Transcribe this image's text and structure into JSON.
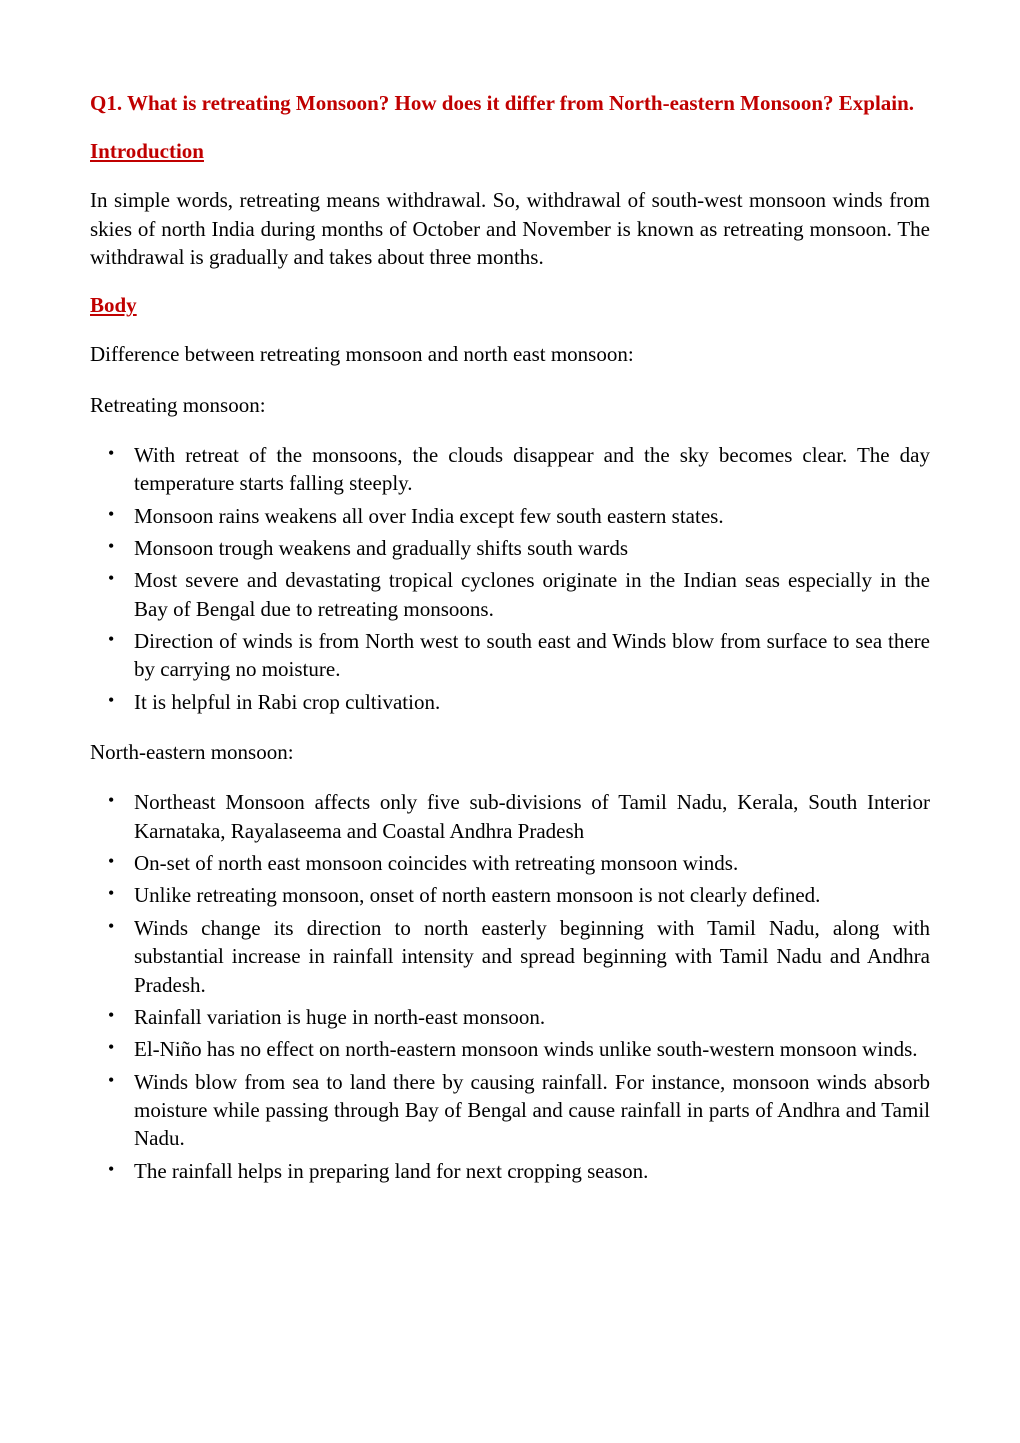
{
  "colors": {
    "heading": "#c00000",
    "body_text": "#000000",
    "background": "#ffffff"
  },
  "typography": {
    "font_family": "Times New Roman",
    "heading_size_pt": 16,
    "body_size_pt": 16,
    "heading_weight": "bold"
  },
  "question": {
    "label": "Q1. What is retreating Monsoon? How does it differ from North-eastern Monsoon? Explain."
  },
  "intro": {
    "heading": "Introduction",
    "text": "In simple words, retreating means withdrawal. So, withdrawal of south-west monsoon winds from skies of north India during months of October and November is known as retreating monsoon. The withdrawal is gradually and takes about three months."
  },
  "body": {
    "heading": "Body",
    "lead": "Difference between retreating monsoon and north east monsoon:",
    "retreating": {
      "title": "Retreating monsoon:",
      "items": [
        "With retreat of the monsoons, the clouds disappear and the sky becomes clear. The day temperature starts falling steeply.",
        "Monsoon rains weakens all over India except few south eastern states.",
        "Monsoon trough weakens and gradually shifts south wards",
        "Most severe and devastating tropical cyclones originate in the Indian seas especially in the Bay of Bengal due to retreating monsoons.",
        "Direction of winds is from North west to south east and Winds blow from surface to sea there by carrying no moisture.",
        "It is helpful in Rabi crop cultivation."
      ]
    },
    "northeastern": {
      "title": "North-eastern monsoon:",
      "items": [
        "Northeast Monsoon affects only five sub-divisions of Tamil Nadu, Kerala, South Interior Karnataka, Rayalaseema and Coastal Andhra Pradesh",
        "On-set of north east monsoon coincides with retreating monsoon winds.",
        "Unlike retreating monsoon, onset of north eastern monsoon is not clearly defined.",
        "Winds change its direction to north easterly beginning with Tamil Nadu, along with substantial increase in rainfall intensity and spread beginning with Tamil Nadu and Andhra Pradesh.",
        "Rainfall variation is huge in north-east monsoon.",
        "El-Niño has no effect on north-eastern monsoon winds unlike south-western monsoon winds.",
        "Winds blow from sea to land there by causing rainfall. For instance, monsoon winds absorb moisture while passing through Bay of Bengal and cause rainfall in parts of Andhra and Tamil Nadu.",
        "The rainfall helps in preparing land for next cropping season."
      ]
    }
  }
}
